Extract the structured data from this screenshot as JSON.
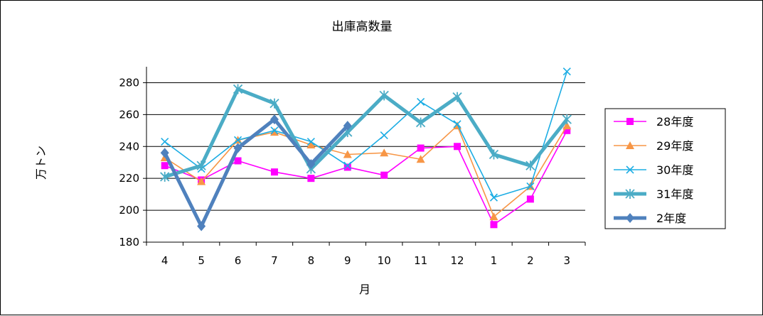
{
  "chart_data": {
    "type": "line",
    "title": "出庫高数量",
    "xlabel": "月",
    "ylabel": "万トン",
    "categories": [
      "4",
      "5",
      "6",
      "7",
      "8",
      "9",
      "10",
      "11",
      "12",
      "1",
      "2",
      "3"
    ],
    "ylim": [
      180,
      290
    ],
    "yticks": [
      180,
      200,
      220,
      240,
      260,
      280
    ],
    "grid": true,
    "legend_position": "right",
    "series": [
      {
        "name": "28年度",
        "color": "#FF00FF",
        "marker": "square",
        "width": "thin",
        "values": [
          228,
          219,
          231,
          224,
          220,
          227,
          222,
          239,
          240,
          191,
          207,
          250
        ]
      },
      {
        "name": "29年度",
        "color": "#F79646",
        "marker": "triangle",
        "width": "thin",
        "values": [
          233,
          218,
          244,
          249,
          241,
          235,
          236,
          232,
          253,
          196,
          215,
          253
        ]
      },
      {
        "name": "30年度",
        "color": "#1CADE4",
        "marker": "x",
        "width": "thin",
        "values": [
          243,
          226,
          244,
          250,
          243,
          228,
          247,
          268,
          254,
          208,
          215,
          287
        ]
      },
      {
        "name": "31年度",
        "color": "#4BACC6",
        "marker": "star",
        "width": "thick",
        "values": [
          221,
          228,
          276,
          267,
          226,
          249,
          272,
          255,
          271,
          235,
          228,
          257
        ]
      },
      {
        "name": "2年度",
        "color": "#4F81BD",
        "marker": "diamond",
        "width": "thick",
        "values": [
          236,
          190,
          239,
          257,
          229,
          253,
          null,
          null,
          null,
          null,
          null,
          null
        ]
      }
    ]
  }
}
